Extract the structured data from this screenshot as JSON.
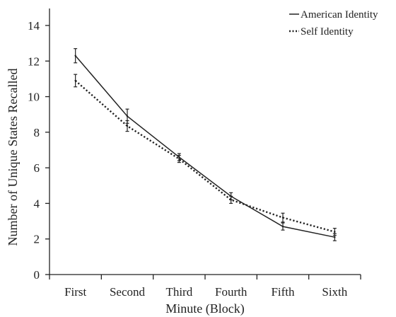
{
  "chart_data": {
    "type": "line",
    "xlabel": "Minute (Block)",
    "ylabel": "Number of Unique States Recalled",
    "categories": [
      "First",
      "Second",
      "Third",
      "Fourth",
      "Fifth",
      "Sixth"
    ],
    "ylim": [
      0,
      14
    ],
    "yticks": [
      0,
      2,
      4,
      6,
      8,
      10,
      12,
      14
    ],
    "grid": false,
    "legend_position": "top-right",
    "series": [
      {
        "name": "American Identity",
        "line_style": "solid",
        "color": "#222222",
        "values": [
          12.3,
          8.9,
          6.6,
          4.4,
          2.7,
          2.1
        ],
        "error": [
          0.4,
          0.4,
          0.2,
          0.2,
          0.2,
          0.2
        ]
      },
      {
        "name": "Self Identity",
        "line_style": "dotted",
        "color": "#222222",
        "values": [
          10.9,
          8.35,
          6.5,
          4.2,
          3.2,
          2.4
        ],
        "error": [
          0.35,
          0.3,
          0.2,
          0.2,
          0.25,
          0.2
        ]
      }
    ]
  }
}
